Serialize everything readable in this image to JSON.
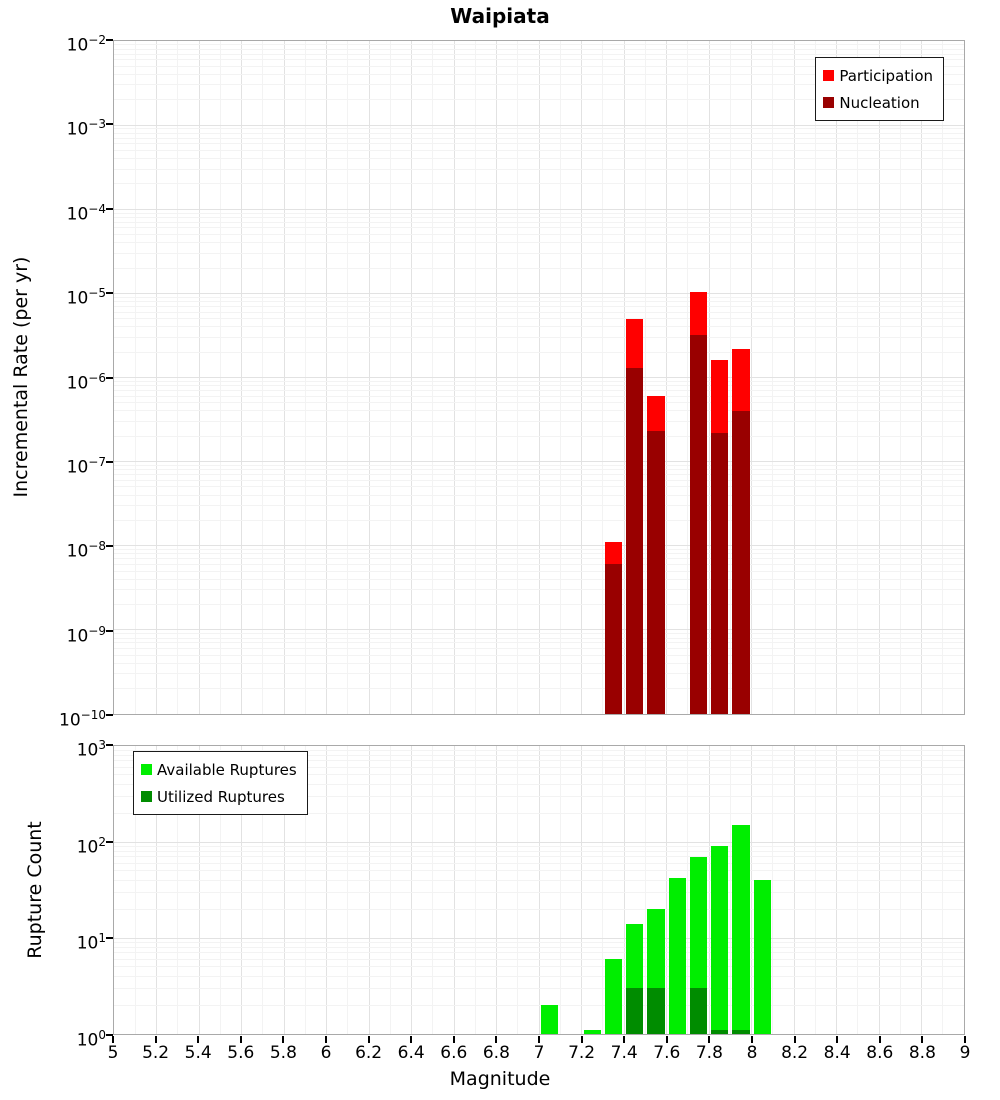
{
  "title": "Waipiata",
  "xlabel": "Magnitude",
  "x_axis": {
    "min": 5,
    "max": 9,
    "tick_step": 0.2,
    "tick_labels": [
      "5",
      "5.2",
      "5.4",
      "5.6",
      "5.8",
      "6",
      "6.2",
      "6.4",
      "6.6",
      "6.8",
      "7",
      "7.2",
      "7.4",
      "7.6",
      "7.8",
      "8",
      "8.2",
      "8.4",
      "8.6",
      "8.8",
      "9"
    ]
  },
  "colors": {
    "participation": "#ff0000",
    "nucleation": "#990000",
    "available": "#00ee00",
    "utilized": "#008c00",
    "grid_major": "#e2e2e2",
    "grid_minor": "#f3f3f3",
    "axis_border": "#a9a9a9"
  },
  "chart_data": [
    {
      "type": "bar",
      "title": "Waipiata",
      "xlabel": "Magnitude",
      "ylabel": "Incremental Rate (per yr)",
      "x_range": [
        5,
        9
      ],
      "y_scale": "log",
      "y_range_log10": [
        -10,
        -2
      ],
      "y_ticks_log10": [
        -2,
        -3,
        -4,
        -5,
        -6,
        -7,
        -8,
        -9,
        -10
      ],
      "bin_width": 0.1,
      "grid": true,
      "legend_position": "top-right",
      "series": [
        {
          "name": "Participation",
          "color": "#ff0000",
          "x": [
            7.35,
            7.45,
            7.55,
            7.75,
            7.85,
            7.95
          ],
          "values": [
            1.1e-08,
            5e-06,
            6e-07,
            1.05e-05,
            1.6e-06,
            2.2e-06
          ]
        },
        {
          "name": "Nucleation",
          "color": "#990000",
          "x": [
            7.35,
            7.45,
            7.55,
            7.75,
            7.85,
            7.95
          ],
          "values": [
            6e-09,
            1.3e-06,
            2.3e-07,
            3.2e-06,
            2.2e-07,
            4e-07
          ]
        }
      ]
    },
    {
      "type": "bar",
      "title": "",
      "xlabel": "Magnitude",
      "ylabel": "Rupture Count",
      "x_range": [
        5,
        9
      ],
      "y_scale": "log",
      "y_range_log10": [
        0,
        3
      ],
      "y_ticks_log10": [
        3,
        2,
        1,
        0
      ],
      "bin_width": 0.1,
      "grid": true,
      "legend_position": "top-left",
      "series": [
        {
          "name": "Available Ruptures",
          "color": "#00ee00",
          "x": [
            7.05,
            7.25,
            7.35,
            7.45,
            7.55,
            7.65,
            7.75,
            7.85,
            7.95,
            8.05
          ],
          "values": [
            2,
            1,
            6,
            14,
            20,
            42,
            70,
            90,
            150,
            40
          ]
        },
        {
          "name": "Utilized Ruptures",
          "color": "#008c00",
          "x": [
            7.45,
            7.55,
            7.75,
            7.85,
            7.95
          ],
          "values": [
            3,
            3,
            3,
            1,
            1
          ]
        }
      ]
    }
  ]
}
